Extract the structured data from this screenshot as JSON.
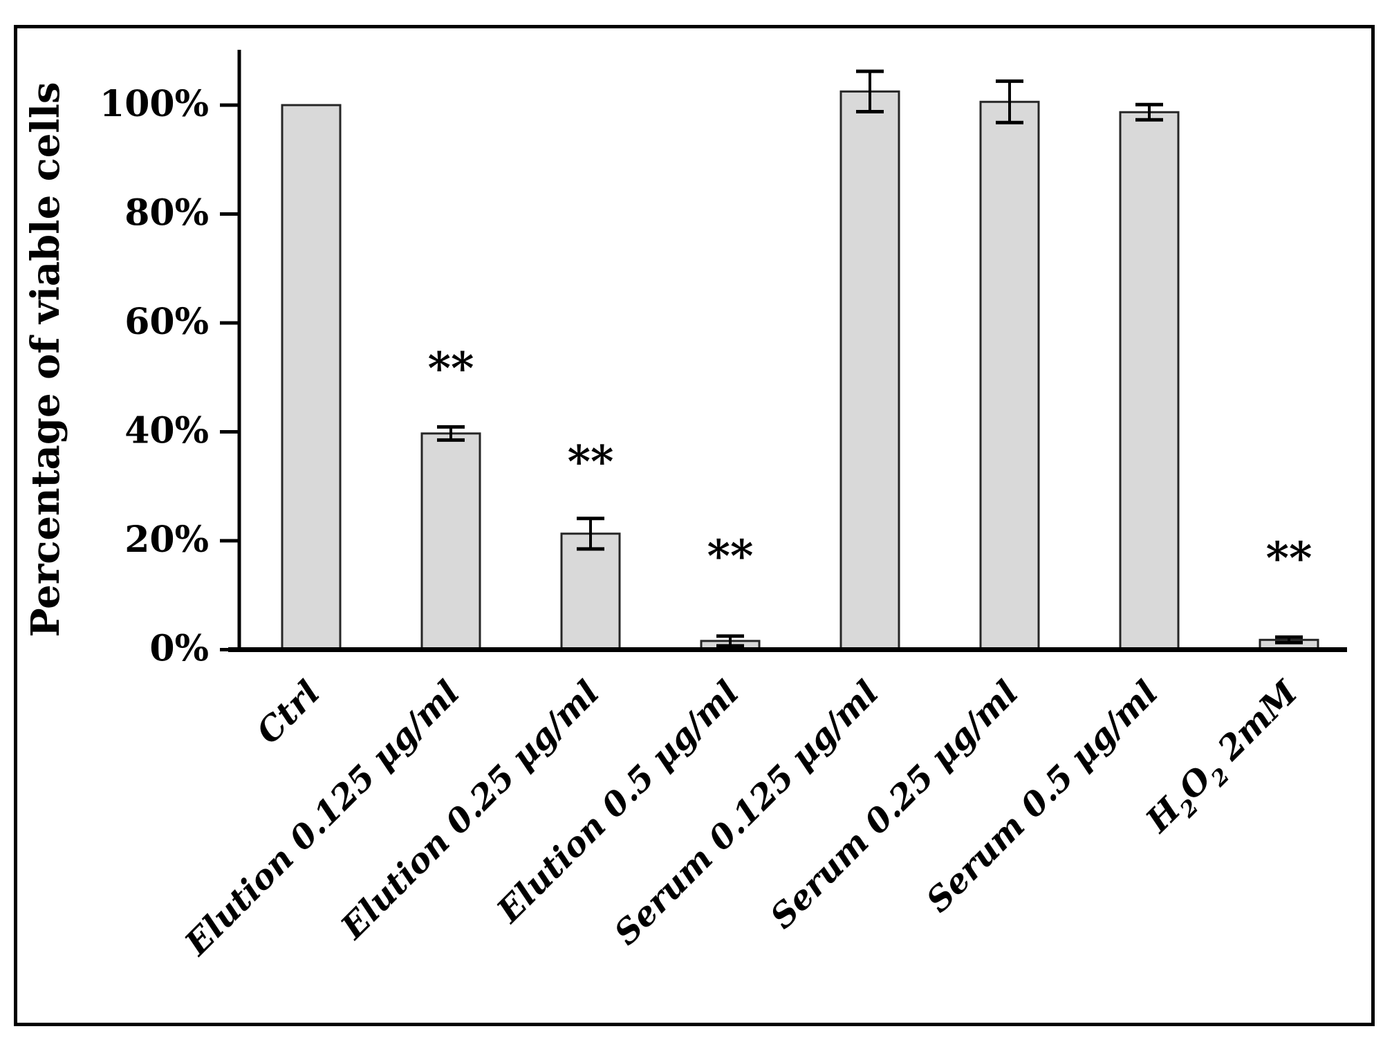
{
  "figure": {
    "background": "#ffffff",
    "frame_color": "#000000"
  },
  "chart_data": {
    "type": "bar",
    "title": "",
    "xlabel": "",
    "ylabel": "Percentage of viable cells",
    "ylim": [
      0,
      110
    ],
    "grid": false,
    "legend": null,
    "bar_fill_color": "#d9d9d9",
    "bar_border_color": "#262626",
    "error_bar_color": "#000000",
    "y_ticks": [
      {
        "value": 0,
        "label": "0%"
      },
      {
        "value": 20,
        "label": "20%"
      },
      {
        "value": 40,
        "label": "40%"
      },
      {
        "value": 60,
        "label": "60%"
      },
      {
        "value": 80,
        "label": "80%"
      },
      {
        "value": 100,
        "label": "100%"
      }
    ],
    "categories": [
      "Ctrl",
      "Elution 0.125 µg/ml",
      "Elution 0.25 µg/ml",
      "Elution 0.5 µg/ml",
      "Serum 0.125 µg/ml",
      "Serum 0.25 µg/ml",
      "Serum 0.5 µg/ml",
      "H₂O₂ 2mM"
    ],
    "values": [
      100,
      39.7,
      21.3,
      1.6,
      102.5,
      100.6,
      98.7,
      1.8
    ],
    "errors": [
      0,
      1.2,
      2.8,
      0.9,
      3.7,
      3.8,
      1.4,
      0.5
    ],
    "significance": [
      "",
      "**",
      "**",
      "**",
      "",
      "",
      "",
      "**"
    ],
    "significance_label_y_pct": [
      null,
      52.6,
      35.4,
      18.1,
      null,
      null,
      null,
      17.7
    ]
  }
}
